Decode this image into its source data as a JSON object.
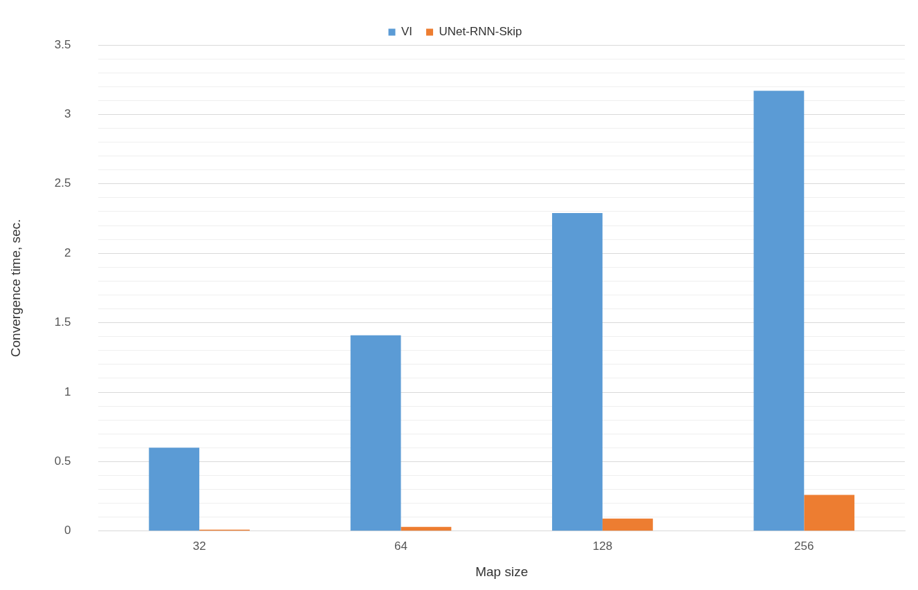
{
  "chart_data": {
    "type": "bar",
    "xlabel": "Map size",
    "ylabel": "Convergence time, sec.",
    "categories": [
      "32",
      "64",
      "128",
      "256"
    ],
    "series": [
      {
        "name": "VI",
        "color": "#5b9bd5",
        "values": [
          0.6,
          1.41,
          2.29,
          3.17
        ]
      },
      {
        "name": "UNet-RNN-Skip",
        "color": "#ed7d31",
        "values": [
          0.01,
          0.03,
          0.09,
          0.26
        ]
      }
    ],
    "ylim": [
      0,
      3.5
    ],
    "yticks": [
      0,
      {
        "value": 0.1,
        "label": null
      },
      {
        "value": 0.2,
        "label": null
      },
      {
        "value": 0.3,
        "label": null
      },
      {
        "value": 0.4,
        "label": null
      },
      0.5,
      {
        "value": 0.6,
        "label": null
      },
      {
        "value": 0.7,
        "label": null
      },
      {
        "value": 0.8,
        "label": null
      },
      {
        "value": 0.9,
        "label": null
      },
      1,
      {
        "value": 1.1,
        "label": null
      },
      {
        "value": 1.2,
        "label": null
      },
      {
        "value": 1.3,
        "label": null
      },
      {
        "value": 1.4,
        "label": null
      },
      1.5,
      {
        "value": 1.6,
        "label": null
      },
      {
        "value": 1.7,
        "label": null
      },
      {
        "value": 1.8,
        "label": null
      },
      {
        "value": 1.9,
        "label": null
      },
      2,
      {
        "value": 2.1,
        "label": null
      },
      {
        "value": 2.2,
        "label": null
      },
      {
        "value": 2.3,
        "label": null
      },
      {
        "value": 2.4,
        "label": null
      },
      2.5,
      {
        "value": 2.6,
        "label": null
      },
      {
        "value": 2.7,
        "label": null
      },
      {
        "value": 2.8,
        "label": null
      },
      {
        "value": 2.9,
        "label": null
      },
      3,
      {
        "value": 3.1,
        "label": null
      },
      {
        "value": 3.2,
        "label": null
      },
      {
        "value": 3.3,
        "label": null
      },
      {
        "value": 3.4,
        "label": null
      },
      3.5
    ],
    "grid": "y",
    "legend": "top"
  }
}
